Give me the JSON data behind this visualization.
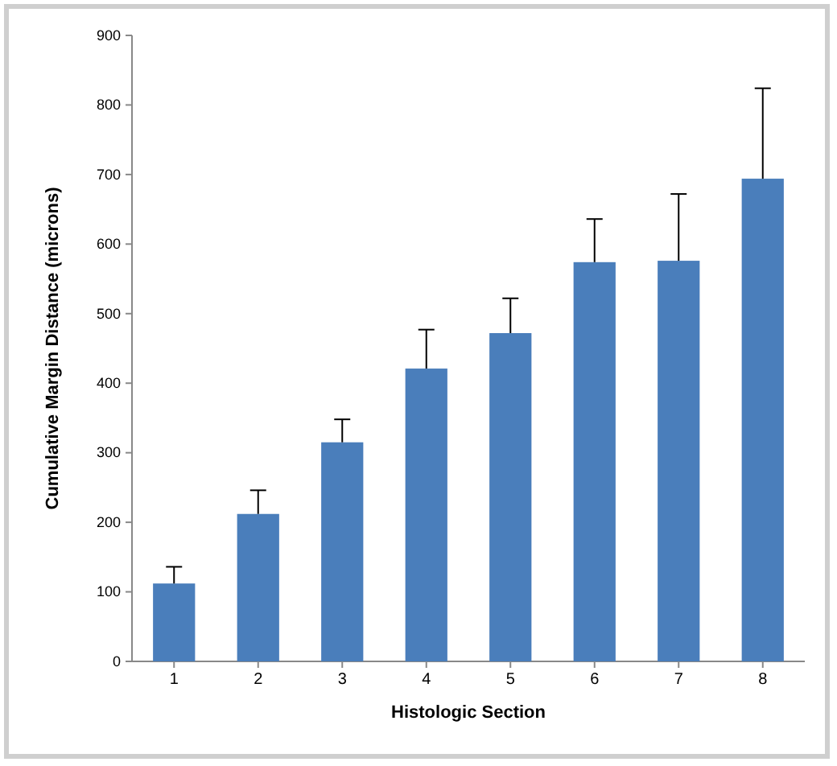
{
  "chart_data": {
    "type": "bar",
    "xlabel": "Histologic Section",
    "ylabel": "Cumulative Margin Distance (microns)",
    "categories": [
      "1",
      "2",
      "3",
      "4",
      "5",
      "6",
      "7",
      "8"
    ],
    "values": [
      112,
      212,
      315,
      421,
      472,
      574,
      576,
      694
    ],
    "errors": [
      [
        112,
        136
      ],
      [
        212,
        246
      ],
      [
        315,
        348
      ],
      [
        421,
        477
      ],
      [
        472,
        522
      ],
      [
        574,
        636
      ],
      [
        576,
        672
      ],
      [
        694,
        824
      ]
    ],
    "color": "#4a7ebb",
    "ylim": [
      0,
      900
    ],
    "yticks": [
      0,
      100,
      200,
      300,
      400,
      500,
      600,
      700,
      800,
      900
    ],
    "grid": false
  }
}
